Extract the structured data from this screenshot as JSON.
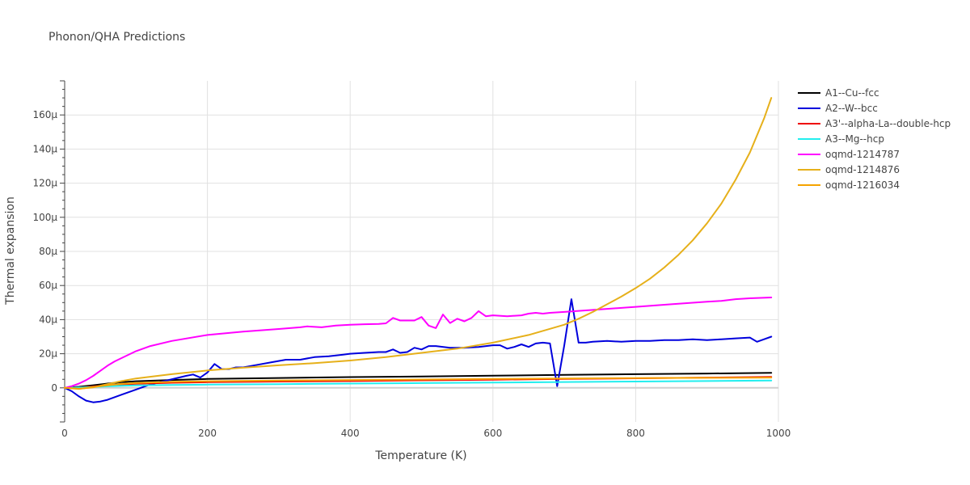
{
  "chart_data": {
    "type": "line",
    "title": "Phonon/QHA Predictions",
    "xlabel": "Temperature (K)",
    "ylabel": "Thermal expansion",
    "xlim": [
      0,
      1000
    ],
    "ylim": [
      -20,
      180
    ],
    "y_unit_suffix": "μ",
    "x_ticks": [
      0,
      200,
      400,
      600,
      800,
      1000
    ],
    "y_ticks": [
      0,
      20,
      40,
      60,
      80,
      100,
      120,
      140,
      160
    ],
    "grid": true,
    "legend_position": "right",
    "series": [
      {
        "name": "A1--Cu--fcc",
        "color": "#000000",
        "x": [
          0,
          20,
          40,
          60,
          80,
          100,
          150,
          200,
          300,
          400,
          500,
          600,
          700,
          800,
          900,
          990
        ],
        "y": [
          0,
          0.6,
          1.5,
          2.5,
          3.3,
          3.9,
          4.6,
          5.2,
          5.8,
          6.3,
          6.7,
          7.1,
          7.6,
          8.0,
          8.4,
          8.8
        ]
      },
      {
        "name": "A2--W--bcc",
        "color": "#0000dd",
        "x": [
          0,
          10,
          20,
          30,
          40,
          50,
          60,
          80,
          100,
          120,
          140,
          160,
          170,
          180,
          190,
          200,
          210,
          220,
          230,
          240,
          250,
          270,
          290,
          310,
          330,
          350,
          370,
          390,
          400,
          420,
          440,
          450,
          460,
          470,
          480,
          490,
          500,
          510,
          520,
          540,
          560,
          580,
          600,
          610,
          620,
          630,
          640,
          650,
          660,
          670,
          680,
          690,
          700,
          710,
          720,
          730,
          740,
          760,
          780,
          800,
          820,
          840,
          860,
          880,
          900,
          920,
          940,
          960,
          970,
          980,
          990
        ],
        "y": [
          0,
          -2,
          -5,
          -7.5,
          -8.5,
          -8,
          -7,
          -4,
          -1,
          2,
          4,
          6,
          7,
          7.8,
          6,
          9,
          14,
          11,
          11,
          12,
          12,
          13.5,
          15,
          16.5,
          16.5,
          18,
          18.5,
          19.5,
          20,
          20.5,
          21,
          21,
          22.5,
          20.5,
          21,
          23.5,
          22.5,
          24.5,
          24.5,
          23.5,
          23.5,
          24,
          25,
          25,
          23,
          24,
          25.5,
          24,
          26,
          26.5,
          26,
          1,
          25,
          52,
          26.5,
          26.5,
          27,
          27.5,
          27,
          27.5,
          27.5,
          28,
          28,
          28.5,
          28,
          28.5,
          29,
          29.5,
          27,
          28.5,
          30
        ]
      },
      {
        "name": "A3'--alpha-La--double-hcp",
        "color": "#ee0000",
        "x": [
          0,
          20,
          40,
          60,
          80,
          100,
          150,
          200,
          300,
          400,
          500,
          600,
          700,
          800,
          900,
          990
        ],
        "y": [
          0,
          0.2,
          0.8,
          1.5,
          2.0,
          2.4,
          3.0,
          3.3,
          3.7,
          4.0,
          4.4,
          4.8,
          5.2,
          5.6,
          6.0,
          6.4
        ]
      },
      {
        "name": "A3--Mg--hcp",
        "color": "#22eeee",
        "x": [
          0,
          20,
          40,
          60,
          80,
          100,
          150,
          200,
          300,
          400,
          500,
          600,
          700,
          800,
          900,
          990
        ],
        "y": [
          0,
          0.2,
          0.5,
          0.9,
          1.2,
          1.4,
          1.7,
          1.9,
          2.2,
          2.5,
          2.8,
          3.1,
          3.4,
          3.7,
          4.0,
          4.3
        ]
      },
      {
        "name": "oqmd-1214787",
        "color": "#ff00ff",
        "x": [
          0,
          10,
          20,
          30,
          40,
          50,
          60,
          70,
          80,
          100,
          120,
          150,
          200,
          250,
          300,
          330,
          340,
          360,
          380,
          400,
          420,
          440,
          450,
          460,
          470,
          480,
          490,
          500,
          510,
          520,
          530,
          540,
          550,
          560,
          570,
          580,
          590,
          600,
          620,
          640,
          650,
          660,
          670,
          680,
          700,
          750,
          800,
          850,
          900,
          920,
          940,
          960,
          990
        ],
        "y": [
          0,
          1,
          2.5,
          4.5,
          7,
          10,
          13,
          15.5,
          17.5,
          21.5,
          24.5,
          27.5,
          31,
          33,
          34.5,
          35.5,
          36,
          35.5,
          36.5,
          37,
          37.3,
          37.5,
          37.8,
          41,
          39.5,
          39.5,
          39.5,
          41.5,
          36.5,
          35,
          43,
          38,
          40.5,
          39,
          41,
          45,
          42,
          42.5,
          42,
          42.5,
          43.5,
          44,
          43.5,
          44,
          44.5,
          46,
          47.5,
          49,
          50.5,
          51,
          52,
          52.5,
          53
        ]
      },
      {
        "name": "oqmd-1214876",
        "color": "#e6b01a",
        "x": [
          0,
          20,
          40,
          60,
          80,
          100,
          150,
          200,
          250,
          300,
          350,
          400,
          450,
          500,
          550,
          600,
          650,
          700,
          720,
          740,
          760,
          780,
          800,
          820,
          840,
          860,
          880,
          900,
          920,
          940,
          960,
          980,
          990
        ],
        "y": [
          0,
          -0.5,
          0.3,
          2.2,
          4.0,
          5.5,
          8.0,
          10.2,
          11.8,
          13.2,
          14.5,
          16.0,
          18.0,
          20.5,
          23.0,
          26.5,
          31.0,
          37.0,
          40.5,
          44.5,
          49.0,
          53.5,
          58.5,
          64.0,
          70.5,
          78.0,
          86.5,
          96.5,
          108.0,
          122.0,
          138.0,
          158.0,
          170.0
        ]
      },
      {
        "name": "oqmd-1216034",
        "color": "#f5a300",
        "x": [
          0,
          20,
          40,
          60,
          80,
          100,
          150,
          200,
          300,
          400,
          500,
          600,
          700,
          800,
          900,
          990
        ],
        "y": [
          0,
          -0.6,
          0.5,
          1.5,
          2.3,
          2.9,
          3.5,
          3.9,
          4.3,
          4.6,
          4.9,
          5.2,
          5.5,
          5.7,
          5.9,
          6.0
        ]
      }
    ]
  }
}
